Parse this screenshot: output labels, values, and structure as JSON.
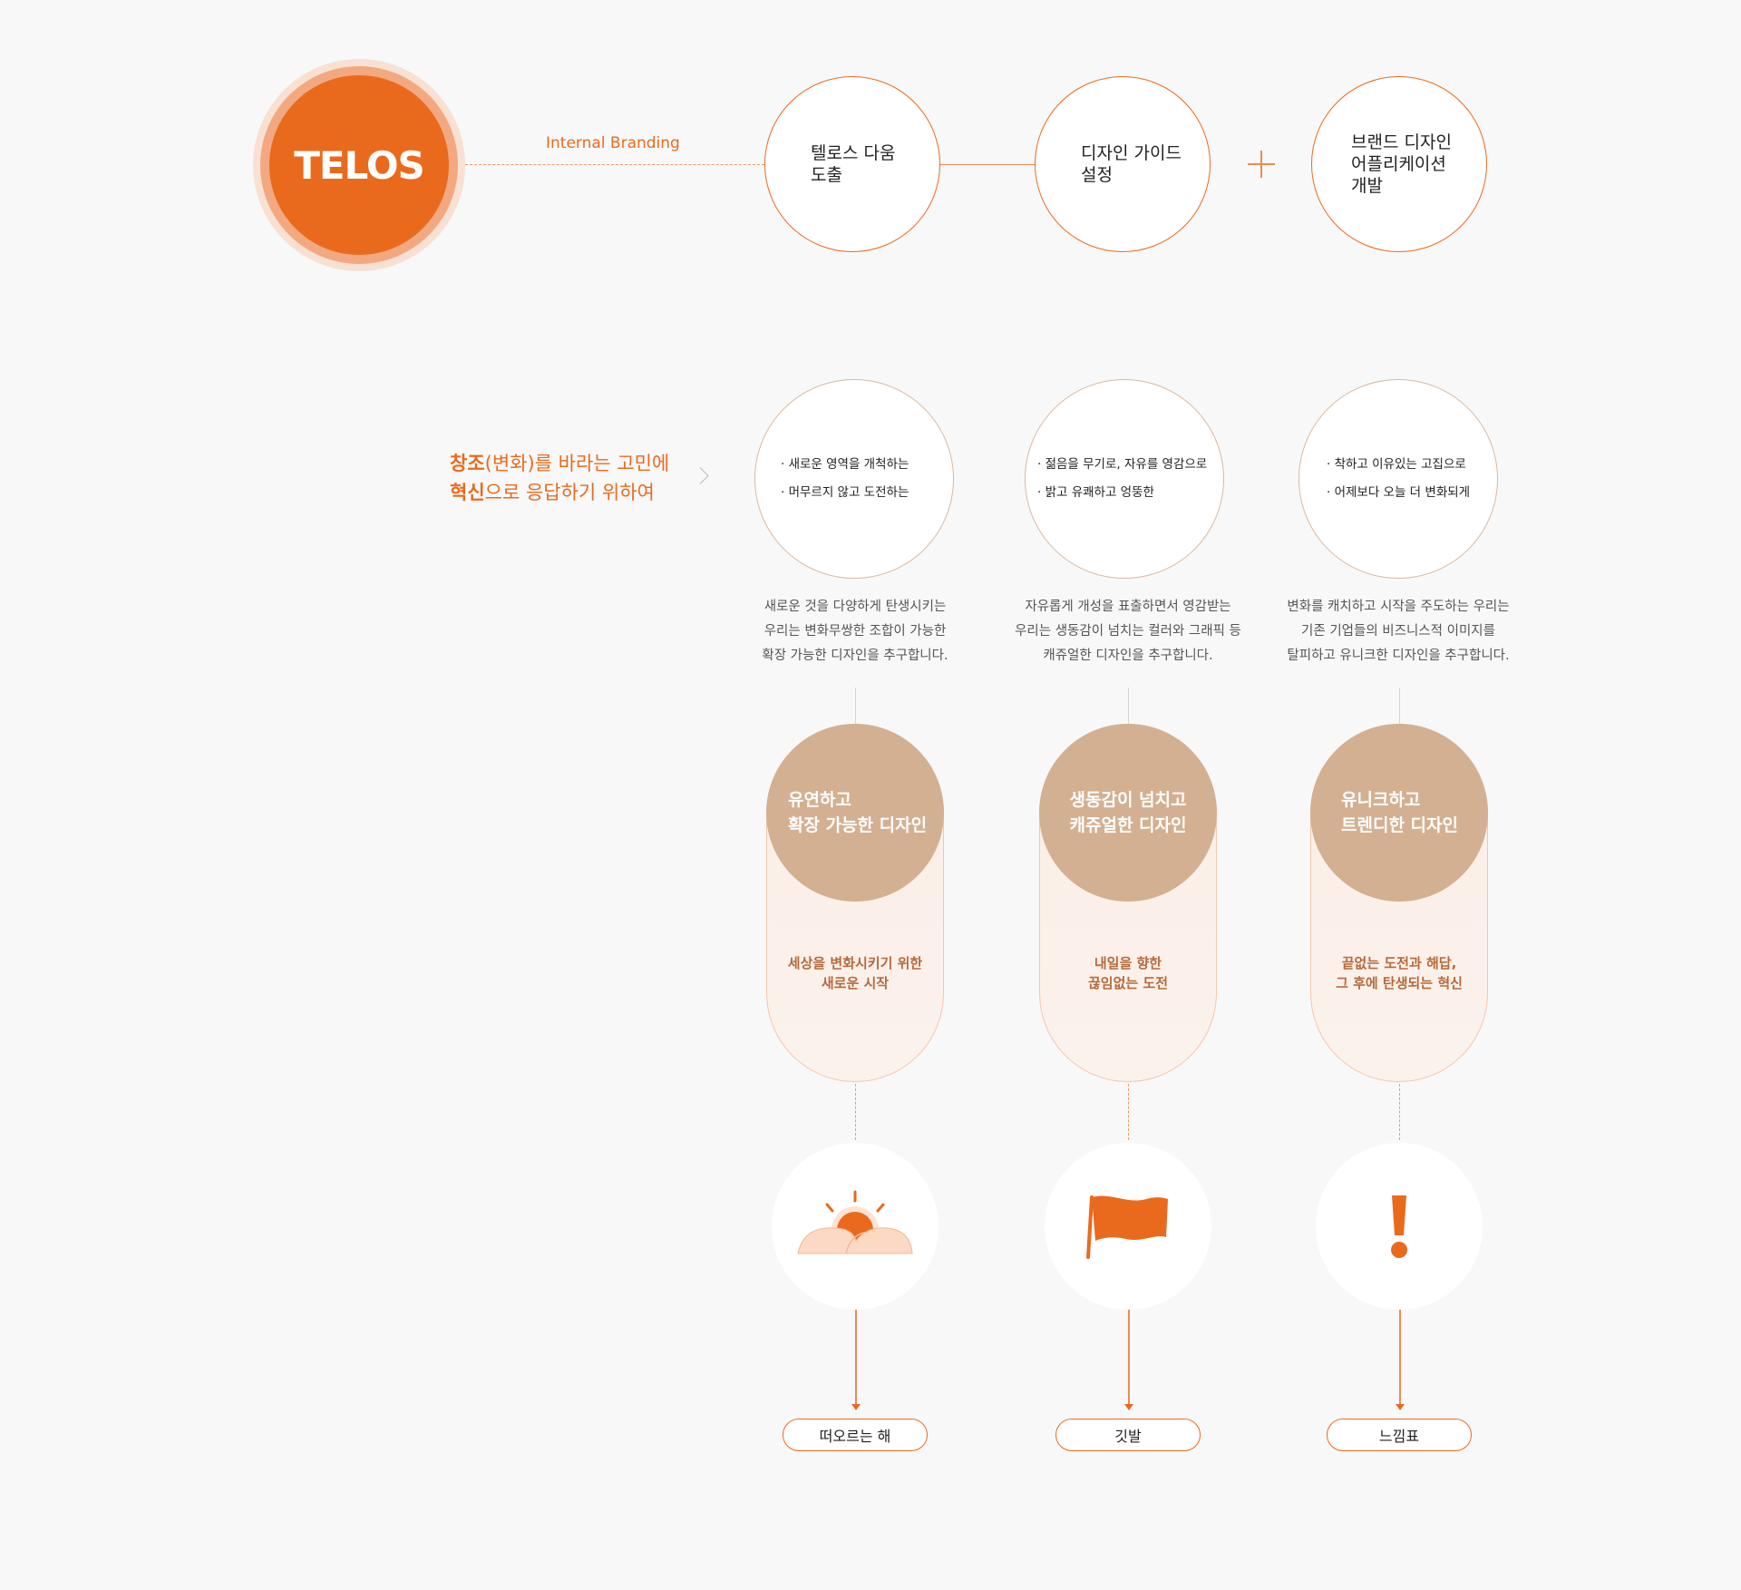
{
  "brand": {
    "name": "TELOS",
    "accent": "#ea6a1d",
    "secondary": "#d4b092"
  },
  "connector_label": "Internal Branding",
  "steps": [
    {
      "label": "텔로스 다움\n도출"
    },
    {
      "label": "디자인 가이드\n설정"
    },
    {
      "label": "브랜드 디자인\n어플리케이션\n개발"
    }
  ],
  "mission": {
    "line1_bold": "창조",
    "line1_rest": "(변화)를 바라는 고민에",
    "line2_bold": "혁신",
    "line2_rest": "으로 응답하기 위하여"
  },
  "columns": [
    {
      "values": [
        "· 새로운 영역을 개척하는",
        "· 머무르지 않고 도전하는"
      ],
      "description": [
        "새로운 것을 다양하게 탄생시키는",
        "우리는 변화무쌍한 조합이 가능한",
        "확장 가능한 디자인을 추구합니다."
      ],
      "keyword": [
        "유연하고",
        "확장 가능한 디자인"
      ],
      "tagline": [
        "세상을 변화시키기 위한",
        "새로운 시작"
      ],
      "icon": "rising-sun-icon",
      "symbol": "떠오르는 해"
    },
    {
      "values": [
        "· 젊음을 무기로, 자유를 영감으로",
        "· 밝고 유쾌하고 엉뚱한"
      ],
      "description": [
        "자유롭게 개성을 표출하면서 영감받는",
        "우리는 생동감이 넘치는 컬러와 그래픽 등",
        "캐쥬얼한 디자인을 추구합니다."
      ],
      "keyword": [
        "생동감이 넘치고",
        "캐쥬얼한 디자인"
      ],
      "tagline": [
        "내일을 향한",
        "끊임없는 도전"
      ],
      "icon": "flag-icon",
      "symbol": "깃발"
    },
    {
      "values": [
        "· 착하고 이유있는 고집으로",
        "· 어제보다 오늘 더 변화되게"
      ],
      "description": [
        "변화를 캐치하고 시작을 주도하는 우리는",
        "기존 기업들의 비즈니스적 이미지를",
        "탈피하고 유니크한 디자인을 추구합니다."
      ],
      "keyword": [
        "유니크하고",
        "트렌디한 디자인"
      ],
      "tagline": [
        "끝없는 도전과 해답,",
        "그 후에 탄생되는 혁신"
      ],
      "icon": "exclamation-icon",
      "symbol": "느낌표"
    }
  ]
}
